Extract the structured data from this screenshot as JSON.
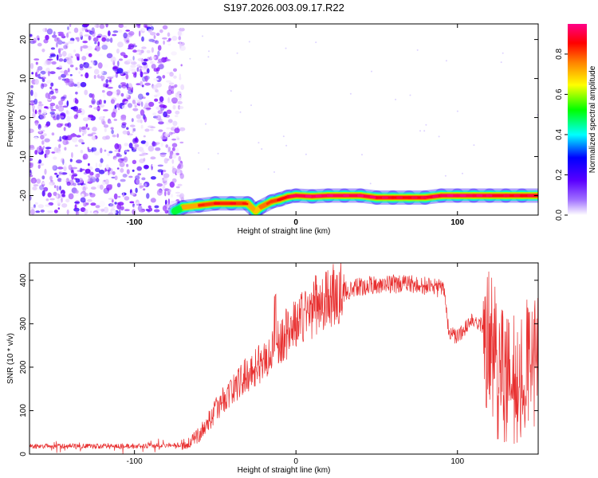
{
  "title": "S197.2026.003.09.17.R22",
  "chart_data": [
    {
      "type": "heatmap",
      "xlabel": "Height of straight line (km)",
      "ylabel": "Frequency (Hz)",
      "xlim": [
        -165,
        150
      ],
      "ylim": [
        -25,
        24
      ],
      "x_ticks": [
        -100,
        0,
        100
      ],
      "x_tick_labels": [
        "-100",
        "0",
        "100"
      ],
      "y_ticks": [
        -20,
        -10,
        0,
        10,
        20
      ],
      "y_tick_labels": [
        "-20",
        "-10",
        "0",
        "10",
        "20"
      ],
      "colorbar": {
        "label": "Normalized spectral amplitude",
        "range": [
          0,
          0.95
        ],
        "ticks": [
          0.0,
          0.2,
          0.4,
          0.6,
          0.8
        ],
        "tick_labels": [
          "0.0",
          "0.2",
          "0.4",
          "0.6",
          "0.8"
        ],
        "colormap": [
          "#ffffff",
          "#7a00ff",
          "#0000ff",
          "#00ffff",
          "#00ff00",
          "#ffff00",
          "#ff8000",
          "#ff0000",
          "#ff0088"
        ]
      },
      "noise_region": {
        "x_range": [
          -165,
          -70
        ],
        "y_range": [
          -25,
          24
        ],
        "amplitude_range": [
          0.0,
          0.2
        ]
      },
      "ridge": {
        "x": [
          -75,
          -70,
          -60,
          -50,
          -40,
          -30,
          -25,
          -22,
          -15,
          -10,
          -5,
          0,
          10,
          20,
          30,
          40,
          50,
          60,
          70,
          80,
          90,
          100,
          110,
          120,
          130,
          140,
          150
        ],
        "y": [
          -24,
          -23,
          -22.5,
          -22,
          -22,
          -22,
          -24,
          -23,
          -21.5,
          -21,
          -20.3,
          -20,
          -20.2,
          -20,
          -20,
          -20,
          -20.5,
          -20.5,
          -20.5,
          -20.5,
          -20,
          -20,
          -20,
          -20,
          -20,
          -20,
          -20
        ],
        "amplitude": [
          0.3,
          0.6,
          0.75,
          0.8,
          0.8,
          0.75,
          0.6,
          0.7,
          0.75,
          0.8,
          0.85,
          0.9,
          0.9,
          0.92,
          0.9,
          0.9,
          0.88,
          0.85,
          0.85,
          0.85,
          0.9,
          0.92,
          0.9,
          0.88,
          0.85,
          0.85,
          0.85
        ]
      }
    },
    {
      "type": "line",
      "xlabel": "Height of straight line (km)",
      "ylabel": "SNR (10 * v/v)",
      "xlim": [
        -165,
        150
      ],
      "ylim": [
        0,
        440
      ],
      "x_ticks": [
        -100,
        0,
        100
      ],
      "x_tick_labels": [
        "-100",
        "0",
        "100"
      ],
      "y_ticks": [
        0,
        100,
        200,
        300,
        400
      ],
      "y_tick_labels": [
        "0",
        "100",
        "200",
        "300",
        "400"
      ],
      "grid": false,
      "color": "#e83030",
      "series": [
        {
          "x": [
            -165,
            -150,
            -120,
            -100,
            -80,
            -70,
            -65,
            -60,
            -55,
            -50,
            -45,
            -40,
            -35,
            -30,
            -25,
            -20,
            -15,
            -10,
            -5,
            0,
            5,
            10,
            15,
            20,
            25,
            30,
            40,
            50,
            60,
            70,
            80,
            85,
            90,
            92,
            94,
            96,
            100,
            104,
            108,
            112,
            116,
            120,
            126,
            132,
            138,
            144,
            150
          ],
          "y": [
            18,
            18,
            18,
            18,
            20,
            22,
            28,
            45,
            70,
            100,
            125,
            145,
            165,
            185,
            200,
            215,
            235,
            260,
            280,
            300,
            320,
            335,
            350,
            358,
            365,
            375,
            385,
            390,
            392,
            390,
            388,
            385,
            380,
            370,
            300,
            275,
            270,
            285,
            310,
            305,
            295,
            285,
            250,
            200,
            210,
            220,
            230
          ]
        }
      ]
    }
  ]
}
